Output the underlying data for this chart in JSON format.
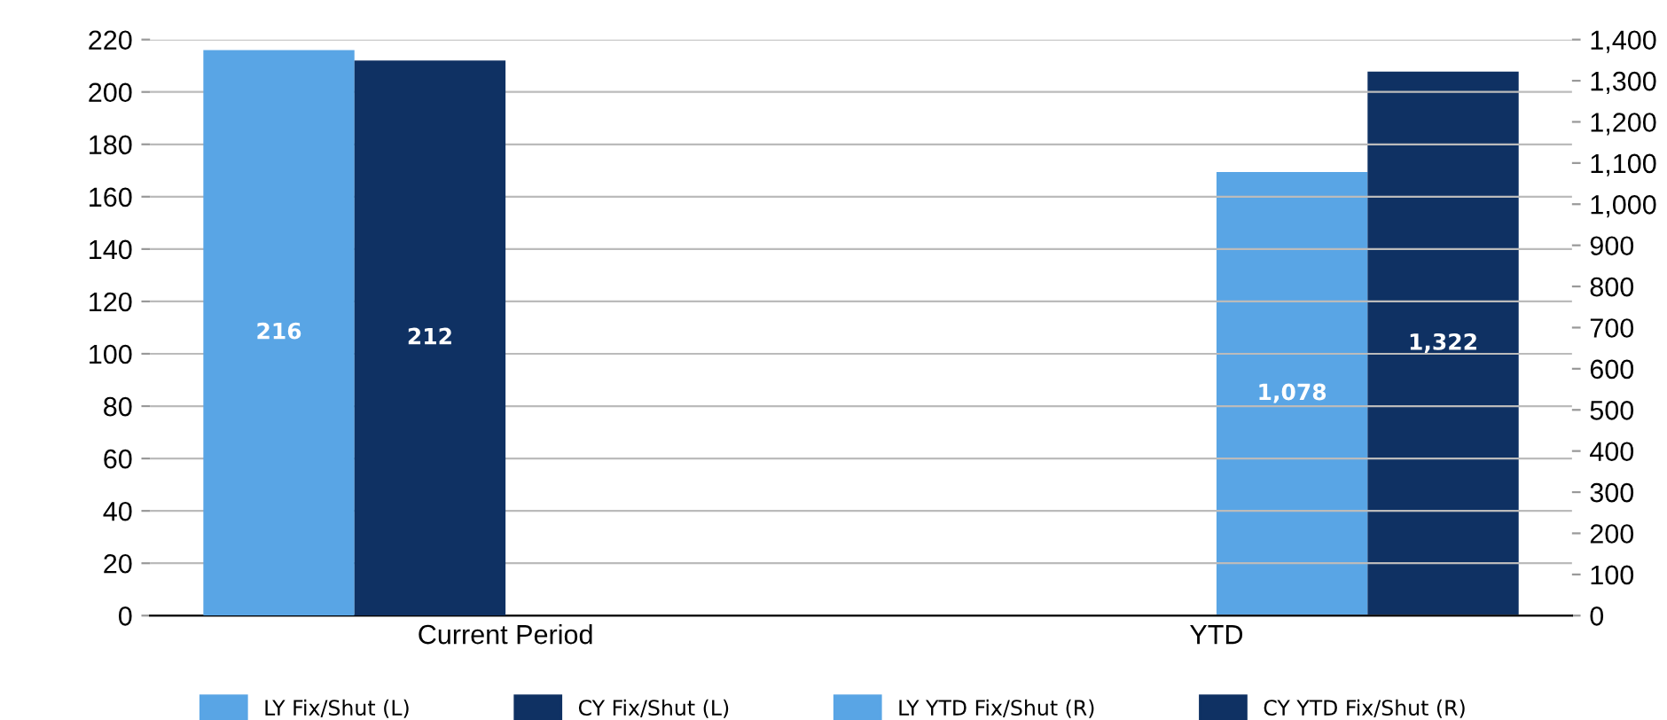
{
  "chart_data": {
    "type": "bar",
    "categories": [
      "Current Period",
      "YTD"
    ],
    "series": [
      {
        "name": "LY Fix/Shut (L)",
        "color": "#59a5e5",
        "values": [
          216,
          null
        ],
        "value_labels": [
          "216",
          null
        ]
      },
      {
        "name": "CY Fix/Shut (L)",
        "color": "#0f3163",
        "values": [
          212,
          null
        ],
        "value_labels": [
          "212",
          null
        ]
      },
      {
        "name": "LY YTD Fix/Shut (R)",
        "color": "#59a5e5",
        "values": [
          null,
          1078
        ],
        "value_labels": [
          null,
          "1,078"
        ],
        "axis": "y2"
      },
      {
        "name": "CY YTD Fix/Shut (R)",
        "color": "#0f3163",
        "values": [
          null,
          1322
        ],
        "value_labels": [
          null,
          "1,322"
        ],
        "axis": "y2"
      }
    ],
    "ylim": [
      0,
      220
    ],
    "yticks": [
      0,
      20,
      40,
      60,
      80,
      100,
      120,
      140,
      160,
      180,
      200,
      220
    ],
    "y2lim": [
      0,
      1400
    ],
    "y2ticks": [
      0,
      100,
      200,
      300,
      400,
      500,
      600,
      700,
      800,
      900,
      {
        "value": 1000,
        "label": "1,000"
      },
      {
        "value": 1100,
        "label": "1,100"
      },
      {
        "value": 1200,
        "label": "1,200"
      },
      {
        "value": 1300,
        "label": "1,300"
      },
      {
        "value": 1400,
        "label": "1,400"
      }
    ],
    "grid": "y",
    "legend": "bottom"
  }
}
